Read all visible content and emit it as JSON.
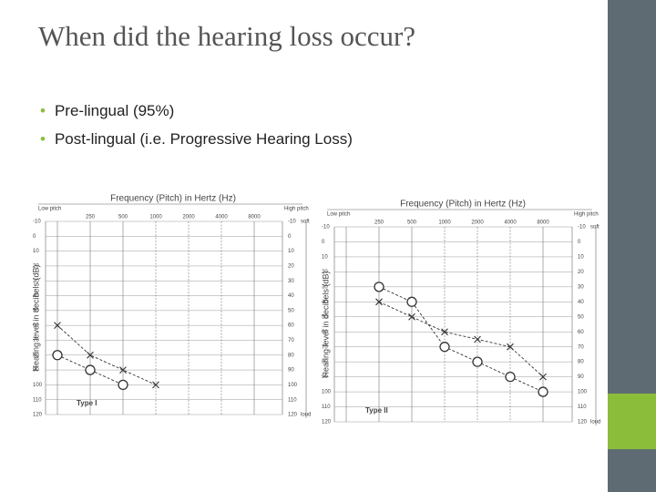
{
  "slide": {
    "title": "When did the hearing loss occur?",
    "bullets": [
      "Pre-lingual  (95%)",
      "Post-lingual (i.e. Progressive Hearing Loss)"
    ]
  },
  "chart_data": [
    {
      "type": "line",
      "title": "Frequency (Pitch) in Hertz (Hz)",
      "x_left_label": "Low pitch",
      "x_right_label": "High pitch",
      "y_label": "Hearing level in decibels (dB)",
      "annotation": "Type I",
      "top_note": "soft",
      "bottom_note": "loud",
      "categories": [
        null,
        250,
        500,
        1000,
        2000,
        4000,
        8000
      ],
      "series": [
        {
          "marker": "x",
          "color": "#333333",
          "values": [
            60,
            80,
            90,
            100,
            null,
            null,
            null
          ]
        },
        {
          "marker": "o",
          "color": "#333333",
          "values": [
            80,
            90,
            100,
            null,
            null,
            null,
            null
          ]
        }
      ],
      "ylim": [
        -10,
        120
      ],
      "yticks": [
        -10,
        0,
        10,
        20,
        30,
        40,
        50,
        60,
        70,
        80,
        90,
        100,
        110,
        120
      ],
      "y_inverted": true,
      "grid": true
    },
    {
      "type": "line",
      "title": "Frequency (Pitch) in Hertz (Hz)",
      "x_left_label": "Low pitch",
      "x_right_label": "High pitch",
      "y_label": "Hearing level in decibels (dB)",
      "annotation": "Type II",
      "top_note": "soft",
      "bottom_note": "loud",
      "categories": [
        null,
        250,
        500,
        1000,
        2000,
        4000,
        8000
      ],
      "series": [
        {
          "marker": "x",
          "color": "#333333",
          "values": [
            null,
            40,
            50,
            60,
            65,
            70,
            90
          ]
        },
        {
          "marker": "o",
          "color": "#333333",
          "values": [
            null,
            30,
            40,
            70,
            80,
            90,
            100
          ]
        }
      ],
      "ylim": [
        -10,
        120
      ],
      "yticks": [
        -10,
        0,
        10,
        20,
        30,
        40,
        50,
        60,
        70,
        80,
        90,
        100,
        110,
        120
      ],
      "y_inverted": true,
      "grid": true
    }
  ]
}
